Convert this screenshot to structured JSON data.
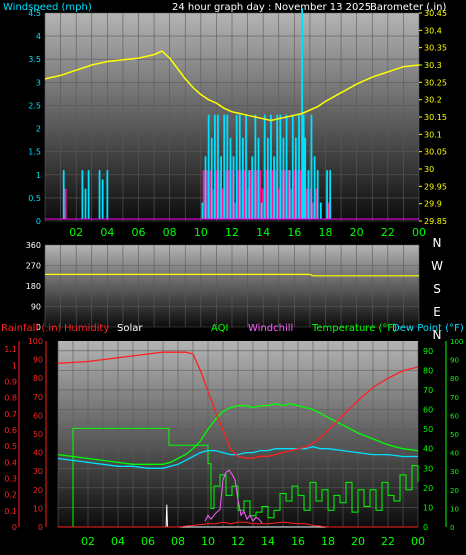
{
  "chart_data": [
    {
      "type": "line",
      "panel": "wind-barometer",
      "title": "24 hour graph day : November 13 2025",
      "left_axis_label": "Windspeed (mph)",
      "right_axis_label": "Barometer (.in)",
      "x_ticks": [
        "02",
        "04",
        "06",
        "08",
        "10",
        "12",
        "14",
        "16",
        "18",
        "20",
        "22",
        "00"
      ],
      "left_ylim": [
        0,
        4.5
      ],
      "left_ticks": [
        "0",
        "0.5",
        "1",
        "1.5",
        "2",
        "2.5",
        "3",
        "3.5",
        "4",
        "4.5"
      ],
      "right_ylim": [
        29.85,
        30.45
      ],
      "right_ticks": [
        "29.85",
        "29.9",
        "29.95",
        "30",
        "30.05",
        "30.1",
        "30.15",
        "30.2",
        "30.25",
        "30.3",
        "30.35",
        "30.4",
        "30.45"
      ],
      "colors": {
        "windspeed": "#00e0ff",
        "gust": "#ff1493",
        "barometer": "#ffff00",
        "left_axis": "#00e0ff",
        "right_axis": "#ffff00",
        "x_ticks": "#00ff00"
      },
      "series": [
        {
          "name": "Barometer",
          "axis": "right",
          "x": [
            0,
            1,
            2,
            3,
            4,
            5,
            6,
            7,
            7.5,
            8,
            8.5,
            9,
            9.5,
            10,
            10.5,
            11,
            11.5,
            12,
            12.5,
            13,
            13.5,
            14,
            14.5,
            15,
            15.5,
            16,
            16.5,
            17,
            17.5,
            18,
            19,
            20,
            21,
            22,
            23,
            24
          ],
          "values": [
            30.26,
            30.27,
            30.285,
            30.3,
            30.31,
            30.315,
            30.32,
            30.33,
            30.34,
            30.32,
            30.29,
            30.26,
            30.235,
            30.215,
            30.2,
            30.19,
            30.175,
            30.165,
            30.16,
            30.155,
            30.15,
            30.145,
            30.14,
            30.145,
            30.15,
            30.155,
            30.16,
            30.17,
            30.18,
            30.195,
            30.22,
            30.245,
            30.265,
            30.28,
            30.295,
            30.3
          ]
        },
        {
          "name": "Windspeed",
          "axis": "left",
          "kind": "bars",
          "x": [
            1.2,
            1.4,
            2.4,
            2.6,
            2.8,
            3.5,
            3.7,
            4.0,
            10.1,
            10.3,
            10.5,
            10.7,
            10.9,
            11.1,
            11.3,
            11.5,
            11.7,
            11.9,
            12.1,
            12.3,
            12.5,
            12.7,
            12.9,
            13.1,
            13.3,
            13.5,
            13.7,
            13.9,
            14.1,
            14.3,
            14.5,
            14.7,
            14.9,
            15.1,
            15.3,
            15.5,
            15.7,
            15.9,
            16.1,
            16.3,
            16.5,
            16.6,
            16.7,
            16.9,
            17.1,
            17.3,
            17.5,
            17.7,
            18.1,
            18.3
          ],
          "values": [
            1.1,
            0,
            1.1,
            0.7,
            1.1,
            1.1,
            0.9,
            1.1,
            0.4,
            1.4,
            2.3,
            1.8,
            2.3,
            2.3,
            1.4,
            2.3,
            2.3,
            1.8,
            1.4,
            2.3,
            2.3,
            1.8,
            2.3,
            1.1,
            1.4,
            2.3,
            1.8,
            0.4,
            2.3,
            1.8,
            2.3,
            1.4,
            2.3,
            2.3,
            1.8,
            2.3,
            1.1,
            2.3,
            1.8,
            2.3,
            4.6,
            2.3,
            1.8,
            1.1,
            2.3,
            1.4,
            1.1,
            0.4,
            1.1,
            1.1
          ]
        },
        {
          "name": "Gust",
          "axis": "left",
          "kind": "bars",
          "x": [
            1.3,
            10.2,
            10.4,
            10.6,
            10.8,
            11.0,
            11.2,
            11.4,
            11.6,
            11.8,
            12.0,
            12.2,
            12.4,
            12.6,
            12.8,
            13.0,
            13.2,
            13.4,
            13.6,
            13.8,
            14.0,
            14.2,
            14.4,
            14.6,
            14.8,
            15.0,
            15.2,
            15.4,
            15.6,
            15.8,
            16.0,
            16.2,
            16.4,
            16.8,
            17.0,
            17.2,
            17.4,
            18.2
          ],
          "values": [
            0.7,
            1.1,
            1.1,
            1.1,
            0.7,
            1.1,
            1.1,
            0.7,
            1.1,
            1.1,
            1.1,
            0.4,
            1.1,
            1.1,
            1.1,
            0.7,
            1.1,
            1.1,
            1.1,
            1.1,
            0.7,
            1.1,
            1.1,
            1.1,
            1.1,
            0.7,
            1.1,
            1.1,
            1.1,
            0.7,
            1.1,
            1.1,
            1.1,
            0.7,
            0.7,
            0.4,
            0.7,
            0.4
          ]
        }
      ]
    },
    {
      "type": "line",
      "panel": "wind-direction",
      "ylim": [
        0,
        360
      ],
      "left_ticks": [
        "0",
        "90",
        "180",
        "270",
        "360"
      ],
      "right_labels": [
        "N",
        "W",
        "S",
        "E",
        "N"
      ],
      "x_ticks": [
        "02",
        "04",
        "06",
        "08",
        "10",
        "12",
        "14",
        "16",
        "18",
        "20",
        "22",
        "00"
      ],
      "colors": {
        "direction": "#ffff00",
        "left_axis": "#ffffff",
        "right_axis": "#ffffff"
      },
      "series": [
        {
          "name": "Wind Direction",
          "x": [
            0,
            17,
            17.2,
            24
          ],
          "values": [
            231,
            231,
            225,
            225
          ]
        }
      ]
    },
    {
      "type": "line",
      "panel": "temp-humidity",
      "legend_labels": [
        "Rainfall (.in)",
        "Humidity",
        "Solar",
        "AQI",
        "Windchill",
        "Temperature (°F)",
        "Dew Point (°F)"
      ],
      "legend_colors": [
        "#ff2020",
        "#ff2020",
        "#ffffff",
        "#00ff00",
        "#ff60ff",
        "#00ff00",
        "#00e0ff"
      ],
      "rain_ticks": [
        "0",
        "0.1",
        "0.2",
        "0.3",
        "0.4",
        "0.5",
        "0.6",
        "0.7",
        "0.8",
        "0.9",
        "1",
        "1.1"
      ],
      "humidity_ticks": [
        "0",
        "10",
        "20",
        "30",
        "40",
        "50",
        "60",
        "70",
        "80",
        "90",
        "100"
      ],
      "temp_ticks": [
        "0",
        "10",
        "20",
        "30",
        "40",
        "50",
        "60",
        "70",
        "80",
        "90"
      ],
      "aqi_ticks": [
        "0",
        "10",
        "20",
        "30",
        "40",
        "50",
        "60",
        "70",
        "80",
        "90",
        "100"
      ],
      "x_ticks": [
        "02",
        "04",
        "06",
        "08",
        "10",
        "12",
        "14",
        "16",
        "18",
        "20",
        "22",
        "00"
      ],
      "temp_ylim": [
        0,
        95
      ],
      "humidity_ylim": [
        0,
        100
      ],
      "series": [
        {
          "name": "Humidity",
          "axis": "humidity",
          "color": "#ff2020",
          "x": [
            0,
            1,
            2,
            3,
            4,
            5,
            6,
            7,
            8,
            8.5,
            9,
            9.5,
            10,
            10.5,
            11,
            11.5,
            12,
            12.5,
            13,
            13.5,
            14,
            14.5,
            15,
            15.5,
            16,
            16.5,
            17,
            17.5,
            18,
            18.5,
            19,
            20,
            21,
            22,
            23,
            24
          ],
          "values": [
            88,
            88.5,
            89,
            90,
            91,
            92,
            93,
            94,
            94,
            94,
            93,
            84,
            73,
            62,
            52,
            42,
            38,
            37,
            37,
            38,
            38,
            39,
            40,
            41,
            42,
            43,
            45,
            48,
            52,
            56,
            60,
            68,
            75,
            80,
            84,
            86
          ]
        },
        {
          "name": "Temperature",
          "axis": "temp",
          "color": "#00ff00",
          "x": [
            0,
            1,
            2,
            3,
            4,
            5,
            6,
            7,
            7.5,
            8,
            8.5,
            9,
            9.5,
            10,
            10.5,
            11,
            11.5,
            12,
            12.5,
            13,
            13.5,
            14,
            14.5,
            15,
            15.5,
            16,
            16.5,
            17,
            17.5,
            18,
            19,
            20,
            21,
            22,
            23,
            24
          ],
          "values": [
            37,
            36,
            35,
            34,
            33,
            32,
            32,
            32,
            33,
            35,
            37,
            40,
            44,
            50,
            55,
            59,
            61,
            62,
            62,
            61,
            62,
            62,
            63,
            62,
            63,
            62,
            61,
            60,
            58,
            56,
            52,
            48,
            45,
            42,
            40,
            39
          ]
        },
        {
          "name": "Dew Point",
          "axis": "temp",
          "color": "#00e0ff",
          "x": [
            0,
            1,
            2,
            3,
            4,
            5,
            6,
            7,
            7.5,
            8,
            8.5,
            9,
            9.5,
            10,
            10.5,
            11,
            11.5,
            12,
            12.5,
            13,
            13.5,
            14,
            14.5,
            15,
            15.5,
            16,
            16.5,
            17,
            17.5,
            18,
            19,
            20,
            21,
            22,
            23,
            24
          ],
          "values": [
            35,
            34,
            33,
            32,
            31,
            31,
            30,
            30,
            31,
            32,
            34,
            36,
            38,
            39,
            39,
            38,
            37,
            37,
            38,
            38,
            39,
            39,
            40,
            40,
            40,
            40,
            40,
            41,
            40,
            40,
            39,
            38,
            37,
            37,
            36,
            36
          ]
        },
        {
          "name": "AQI",
          "axis": "aqi",
          "color": "#00ff00",
          "x": [
            0.8,
            1.0,
            7.2,
            7.4,
            8.6,
            8.8,
            10.0,
            10.2,
            10.4,
            10.8,
            11.2,
            11.6,
            12.0,
            12.4,
            12.8,
            13.2,
            13.6,
            14.0,
            14.4,
            14.8,
            15.2,
            15.6,
            16.0,
            16.4,
            16.8,
            17.2,
            17.6,
            18.0,
            18.4,
            18.8,
            19.2,
            19.6,
            20.0,
            20.4,
            20.8,
            21.2,
            21.6,
            22.0,
            22.4,
            22.8,
            23.2,
            23.6,
            24.0
          ],
          "values": [
            0,
            53,
            53,
            44,
            44,
            44,
            34,
            10,
            22,
            28,
            17,
            22,
            9,
            14,
            6,
            8,
            11,
            5,
            9,
            18,
            14,
            22,
            17,
            9,
            24,
            14,
            20,
            9,
            17,
            13,
            24,
            8,
            20,
            11,
            20,
            9,
            24,
            17,
            14,
            28,
            20,
            33,
            24
          ]
        },
        {
          "name": "Windchill",
          "axis": "temp",
          "color": "#ff60ff",
          "x": [
            9.8,
            10.0,
            10.2,
            10.5,
            10.8,
            11.0,
            11.2,
            11.4,
            11.6,
            11.8,
            12.0,
            12.2,
            12.4,
            12.6,
            12.8,
            13.0,
            13.2,
            13.4,
            13.6
          ],
          "values": [
            3,
            6,
            4,
            7,
            9,
            24,
            28,
            29,
            27,
            24,
            14,
            6,
            8,
            4,
            6,
            3,
            5,
            4,
            2
          ]
        },
        {
          "name": "Solar",
          "axis": "humidity",
          "color": "#ffffff",
          "x": [
            0,
            7.2,
            7.25,
            7.3,
            24
          ],
          "values": [
            0,
            0,
            12,
            0,
            0
          ]
        },
        {
          "name": "Rainfall",
          "axis": "rain",
          "color": "#ff2020",
          "x": [
            0,
            8,
            9,
            10,
            10.5,
            11,
            11.5,
            12,
            12.5,
            13,
            14,
            15,
            16,
            16.5,
            17,
            18,
            24
          ],
          "values": [
            0,
            0,
            0.01,
            0.02,
            0.02,
            0.03,
            0.02,
            0.03,
            0.03,
            0.02,
            0.02,
            0.03,
            0.02,
            0.02,
            0.01,
            0,
            0
          ]
        }
      ]
    }
  ]
}
